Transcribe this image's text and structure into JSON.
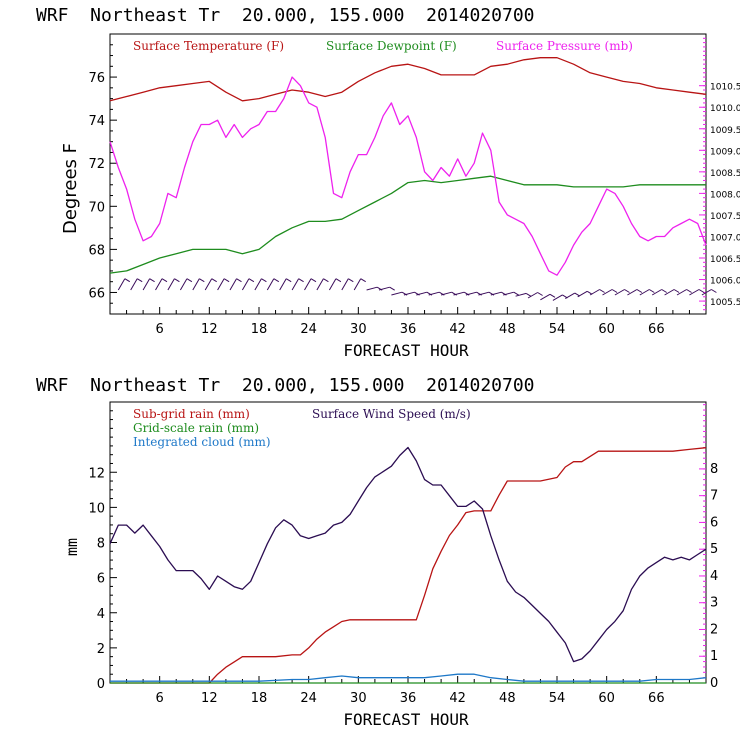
{
  "chart_data": [
    {
      "type": "line",
      "header": "WRF  Northeast Tr  20.000, 155.000  2014020700",
      "xlabel": "FORECAST HOUR",
      "ylabel": "Degrees F",
      "xlim": [
        0,
        72
      ],
      "xticks": [
        6,
        12,
        18,
        24,
        30,
        36,
        42,
        48,
        54,
        60,
        66
      ],
      "ylim_left": [
        65,
        78
      ],
      "yticks_left": [
        66,
        68,
        70,
        72,
        74,
        76
      ],
      "ylim_right": [
        1005.2,
        1011.7
      ],
      "yticks_right": [
        "1005.5",
        "1006.0",
        "1006.5",
        "1007.0",
        "1007.5",
        "1008.0",
        "1008.5",
        "1009.0",
        "1009.5",
        "1010.0",
        "1010.5"
      ],
      "grid": false,
      "legend": "top",
      "series": [
        {
          "name": "Surface Temperature (F)",
          "color": "#b81414",
          "axis": "left",
          "x": [
            0,
            2,
            4,
            6,
            8,
            10,
            12,
            14,
            16,
            18,
            20,
            22,
            24,
            26,
            28,
            30,
            32,
            34,
            36,
            38,
            40,
            42,
            44,
            46,
            48,
            50,
            52,
            54,
            56,
            58,
            60,
            62,
            64,
            66,
            68,
            70,
            72
          ],
          "values": [
            74.9,
            75.1,
            75.3,
            75.5,
            75.6,
            75.7,
            75.8,
            75.3,
            74.9,
            75.0,
            75.2,
            75.4,
            75.3,
            75.1,
            75.3,
            75.8,
            76.2,
            76.5,
            76.6,
            76.4,
            76.1,
            76.1,
            76.1,
            76.5,
            76.6,
            76.8,
            76.9,
            76.9,
            76.6,
            76.2,
            76.0,
            75.8,
            75.7,
            75.5,
            75.4,
            75.3,
            75.2
          ]
        },
        {
          "name": "Surface Dewpoint (F)",
          "color": "#1e8c1e",
          "axis": "left",
          "x": [
            0,
            2,
            4,
            6,
            8,
            10,
            12,
            14,
            16,
            18,
            20,
            22,
            24,
            26,
            28,
            30,
            32,
            34,
            36,
            38,
            40,
            42,
            44,
            46,
            48,
            50,
            52,
            54,
            56,
            58,
            60,
            62,
            64,
            66,
            68,
            70,
            72
          ],
          "values": [
            66.9,
            67.0,
            67.3,
            67.6,
            67.8,
            68.0,
            68.0,
            68.0,
            67.8,
            68.0,
            68.6,
            69.0,
            69.3,
            69.3,
            69.4,
            69.8,
            70.2,
            70.6,
            71.1,
            71.2,
            71.1,
            71.2,
            71.3,
            71.4,
            71.2,
            71.0,
            71.0,
            71.0,
            70.9,
            70.9,
            70.9,
            70.9,
            71.0,
            71.0,
            71.0,
            71.0,
            71.0
          ]
        },
        {
          "name": "Surface Pressure (mb)",
          "color": "#ee22ee",
          "axis": "right",
          "x": [
            0,
            1,
            2,
            3,
            4,
            5,
            6,
            7,
            8,
            9,
            10,
            11,
            12,
            13,
            14,
            15,
            16,
            17,
            18,
            19,
            20,
            21,
            22,
            23,
            24,
            25,
            26,
            27,
            28,
            29,
            30,
            31,
            32,
            33,
            34,
            35,
            36,
            37,
            38,
            39,
            40,
            41,
            42,
            43,
            44,
            45,
            46,
            47,
            48,
            49,
            50,
            51,
            52,
            53,
            54,
            55,
            56,
            57,
            58,
            59,
            60,
            61,
            62,
            63,
            64,
            65,
            66,
            67,
            68,
            69,
            70,
            71,
            72
          ],
          "values": [
            1009.2,
            1008.6,
            1008.1,
            1007.4,
            1006.9,
            1007.0,
            1007.3,
            1008.0,
            1007.9,
            1008.6,
            1009.2,
            1009.6,
            1009.6,
            1009.7,
            1009.3,
            1009.6,
            1009.3,
            1009.5,
            1009.6,
            1009.9,
            1009.9,
            1010.2,
            1010.7,
            1010.5,
            1010.1,
            1010.0,
            1009.3,
            1008.0,
            1007.9,
            1008.5,
            1008.9,
            1008.9,
            1009.3,
            1009.8,
            1010.1,
            1009.6,
            1009.8,
            1009.3,
            1008.5,
            1008.3,
            1008.6,
            1008.4,
            1008.8,
            1008.4,
            1008.7,
            1009.4,
            1009.0,
            1007.8,
            1007.5,
            1007.4,
            1007.3,
            1007.0,
            1006.6,
            1006.2,
            1006.1,
            1006.4,
            1006.8,
            1007.1,
            1007.3,
            1007.7,
            1008.1,
            1008.0,
            1007.7,
            1007.3,
            1007.0,
            1006.9,
            1007.0,
            1007.0,
            1007.2,
            1007.3,
            1007.4,
            1007.3,
            1006.8
          ]
        }
      ]
    },
    {
      "type": "line",
      "header": "WRF  Northeast Tr  20.000, 155.000  2014020700",
      "xlabel": "FORECAST HOUR",
      "ylabel": "mm",
      "xlim": [
        0,
        72
      ],
      "xticks": [
        6,
        12,
        18,
        24,
        30,
        36,
        42,
        48,
        54,
        60,
        66
      ],
      "ylim_left": [
        0,
        16
      ],
      "yticks_left": [
        0,
        2,
        4,
        6,
        8,
        10,
        12
      ],
      "ylim_right": [
        0,
        10.5
      ],
      "yticks_right": [
        "0",
        "1",
        "2",
        "3",
        "4",
        "5",
        "6",
        "7",
        "8"
      ],
      "grid": false,
      "legend": "top-left",
      "series": [
        {
          "name": "Sub-grid rain (mm)",
          "color": "#b81414",
          "axis": "left",
          "x": [
            0,
            12,
            13,
            14,
            15,
            16,
            18,
            20,
            22,
            23,
            24,
            25,
            26,
            27,
            28,
            29,
            30,
            32,
            34,
            36,
            37,
            38,
            39,
            40,
            41,
            42,
            43,
            44,
            45,
            46,
            47,
            48,
            49,
            50,
            51,
            52,
            53,
            54,
            55,
            56,
            57,
            58,
            59,
            60,
            62,
            64,
            66,
            68,
            70,
            72
          ],
          "values": [
            0,
            0,
            0.5,
            0.9,
            1.2,
            1.5,
            1.5,
            1.5,
            1.6,
            1.6,
            2.0,
            2.5,
            2.9,
            3.2,
            3.5,
            3.6,
            3.6,
            3.6,
            3.6,
            3.6,
            3.6,
            5.0,
            6.5,
            7.5,
            8.4,
            9.0,
            9.7,
            9.8,
            9.8,
            9.8,
            10.7,
            11.5,
            11.5,
            11.5,
            11.5,
            11.5,
            11.6,
            11.7,
            12.3,
            12.6,
            12.6,
            12.9,
            13.2,
            13.2,
            13.2,
            13.2,
            13.2,
            13.2,
            13.3,
            13.4
          ]
        },
        {
          "name": "Grid-scale rain (mm)",
          "color": "#1e8c1e",
          "axis": "left",
          "x": [
            0,
            72
          ],
          "values": [
            0,
            0
          ]
        },
        {
          "name": "Integrated cloud (mm)",
          "color": "#1e78c8",
          "axis": "left",
          "x": [
            0,
            6,
            12,
            18,
            22,
            24,
            26,
            28,
            30,
            32,
            34,
            36,
            38,
            40,
            42,
            44,
            46,
            48,
            50,
            52,
            54,
            56,
            58,
            60,
            62,
            64,
            66,
            68,
            70,
            72
          ],
          "values": [
            0.1,
            0.1,
            0.1,
            0.1,
            0.2,
            0.2,
            0.3,
            0.4,
            0.3,
            0.3,
            0.3,
            0.3,
            0.3,
            0.4,
            0.5,
            0.5,
            0.3,
            0.2,
            0.1,
            0.1,
            0.1,
            0.1,
            0.1,
            0.1,
            0.1,
            0.1,
            0.2,
            0.2,
            0.2,
            0.3
          ]
        },
        {
          "name": "Surface Wind Speed (m/s)",
          "color": "#2b0d52",
          "axis": "right",
          "x": [
            0,
            1,
            2,
            3,
            4,
            5,
            6,
            7,
            8,
            9,
            10,
            11,
            12,
            13,
            14,
            15,
            16,
            17,
            18,
            19,
            20,
            21,
            22,
            23,
            24,
            25,
            26,
            27,
            28,
            29,
            30,
            31,
            32,
            33,
            34,
            35,
            36,
            37,
            38,
            39,
            40,
            41,
            42,
            43,
            44,
            45,
            46,
            47,
            48,
            49,
            50,
            51,
            52,
            53,
            54,
            55,
            56,
            57,
            58,
            59,
            60,
            61,
            62,
            63,
            64,
            65,
            66,
            67,
            68,
            69,
            70,
            71,
            72
          ],
          "values": [
            5.2,
            5.9,
            5.9,
            5.6,
            5.9,
            5.5,
            5.1,
            4.6,
            4.2,
            4.2,
            4.2,
            3.9,
            3.5,
            4.0,
            3.8,
            3.6,
            3.5,
            3.8,
            4.5,
            5.2,
            5.8,
            6.1,
            5.9,
            5.5,
            5.4,
            5.5,
            5.6,
            5.9,
            6.0,
            6.3,
            6.8,
            7.3,
            7.7,
            7.9,
            8.1,
            8.5,
            8.8,
            8.3,
            7.6,
            7.4,
            7.4,
            7.0,
            6.6,
            6.6,
            6.8,
            6.5,
            5.5,
            4.6,
            3.8,
            3.4,
            3.2,
            2.9,
            2.6,
            2.3,
            1.9,
            1.5,
            0.8,
            0.9,
            1.2,
            1.6,
            2.0,
            2.3,
            2.7,
            3.5,
            4.0,
            4.3,
            4.5,
            4.7,
            4.6,
            4.7,
            4.6,
            4.8,
            5.0
          ]
        }
      ]
    }
  ]
}
